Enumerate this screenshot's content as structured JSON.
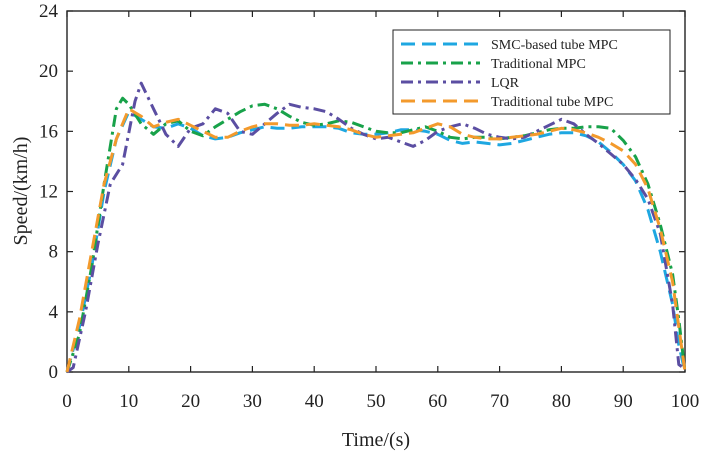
{
  "chart_data": {
    "type": "line",
    "xlabel": "Time/(s)",
    "ylabel": "Speed/(km/h)",
    "xlim": [
      0,
      100
    ],
    "ylim": [
      0,
      24
    ],
    "xticks": [
      0,
      10,
      20,
      30,
      40,
      50,
      60,
      70,
      80,
      90,
      100
    ],
    "yticks": [
      0,
      4,
      8,
      12,
      16,
      20,
      24
    ],
    "grid": false,
    "legend_position": "top-right",
    "series": [
      {
        "name": "SMC-based tube MPC",
        "color": "#1ea7e1",
        "dash": "dashed",
        "x": [
          0,
          2,
          4,
          6,
          8,
          10,
          12,
          14,
          16,
          18,
          20,
          22,
          24,
          26,
          28,
          30,
          32,
          34,
          36,
          38,
          40,
          42,
          44,
          46,
          48,
          50,
          52,
          54,
          56,
          58,
          60,
          62,
          64,
          66,
          68,
          70,
          72,
          74,
          76,
          78,
          80,
          82,
          84,
          86,
          88,
          90,
          92,
          94,
          96,
          98,
          99,
          100
        ],
        "y": [
          0,
          3,
          7,
          12,
          15.5,
          17.3,
          16.8,
          16.3,
          16.2,
          16.5,
          16.2,
          15.7,
          15.5,
          15.6,
          15.9,
          16.1,
          16.3,
          16.2,
          16.2,
          16.3,
          16.3,
          16.3,
          16.2,
          15.9,
          15.8,
          15.8,
          15.9,
          16.1,
          16.1,
          16.0,
          15.8,
          15.4,
          15.2,
          15.3,
          15.2,
          15.1,
          15.2,
          15.4,
          15.6,
          15.8,
          15.9,
          15.9,
          15.7,
          15.3,
          14.6,
          13.8,
          12.7,
          10.8,
          8.0,
          4.5,
          1.8,
          0
        ]
      },
      {
        "name": "Traditional MPC",
        "color": "#18a24a",
        "dash": "dashdot",
        "x": [
          0,
          2,
          4,
          6,
          8,
          9,
          10,
          12,
          14,
          16,
          18,
          20,
          22,
          24,
          26,
          28,
          30,
          32,
          34,
          36,
          38,
          40,
          42,
          44,
          46,
          48,
          50,
          52,
          54,
          56,
          58,
          60,
          62,
          64,
          66,
          68,
          70,
          72,
          74,
          76,
          78,
          80,
          82,
          84,
          86,
          88,
          90,
          92,
          94,
          96,
          98,
          99,
          100
        ],
        "y": [
          0,
          2.5,
          7,
          12.5,
          17.5,
          18.2,
          17.8,
          16.5,
          15.8,
          16.5,
          16.7,
          16.0,
          15.7,
          16.3,
          16.8,
          17.3,
          17.7,
          17.8,
          17.5,
          17.0,
          16.6,
          16.4,
          16.5,
          16.7,
          16.6,
          16.3,
          16.0,
          15.9,
          15.9,
          16.1,
          16.3,
          16.0,
          15.6,
          15.5,
          15.6,
          15.6,
          15.5,
          15.6,
          15.7,
          15.9,
          16.1,
          16.2,
          16.2,
          16.3,
          16.3,
          16.2,
          15.4,
          14.3,
          12.5,
          9.8,
          6.5,
          3.5,
          0
        ]
      },
      {
        "name": "LQR",
        "color": "#5b4ea2",
        "dash": "dashdot",
        "x": [
          0,
          1,
          3,
          5,
          7,
          9,
          11,
          12,
          14,
          16,
          18,
          20,
          22,
          24,
          26,
          28,
          30,
          32,
          34,
          36,
          38,
          40,
          42,
          44,
          46,
          48,
          50,
          52,
          54,
          56,
          58,
          60,
          62,
          64,
          66,
          68,
          70,
          72,
          74,
          76,
          78,
          80,
          82,
          84,
          86,
          88,
          90,
          92,
          94,
          96,
          98,
          99,
          100
        ],
        "y": [
          0,
          0.3,
          4,
          8.5,
          12.5,
          13.8,
          18.0,
          19.2,
          17.5,
          15.8,
          15.0,
          16.2,
          16.5,
          17.5,
          17.2,
          16.0,
          15.8,
          16.5,
          17.2,
          17.8,
          17.6,
          17.5,
          17.3,
          16.8,
          16.2,
          15.8,
          15.5,
          15.6,
          15.3,
          15.0,
          15.4,
          16.0,
          16.3,
          16.5,
          16.2,
          15.8,
          15.6,
          15.5,
          15.6,
          16.0,
          16.4,
          16.8,
          16.5,
          15.8,
          15.2,
          14.5,
          13.8,
          12.8,
          11.5,
          9.2,
          4.5,
          0.5,
          0.2
        ]
      },
      {
        "name": "Traditional tube MPC",
        "color": "#f39a2c",
        "dash": "dashed",
        "x": [
          0,
          2,
          4,
          6,
          8,
          9,
          10,
          12,
          14,
          16,
          18,
          20,
          22,
          24,
          26,
          28,
          30,
          32,
          34,
          36,
          38,
          40,
          42,
          44,
          46,
          48,
          50,
          52,
          54,
          56,
          58,
          60,
          62,
          64,
          66,
          68,
          70,
          72,
          74,
          76,
          78,
          80,
          82,
          84,
          86,
          88,
          90,
          92,
          94,
          96,
          98,
          99,
          100
        ],
        "y": [
          0,
          3.5,
          8,
          12.5,
          15.5,
          16.5,
          17.5,
          17.0,
          16.3,
          16.6,
          16.8,
          16.4,
          16.0,
          15.6,
          15.6,
          16.0,
          16.3,
          16.5,
          16.5,
          16.4,
          16.4,
          16.5,
          16.4,
          16.3,
          16.1,
          15.8,
          15.6,
          15.7,
          15.8,
          15.9,
          16.2,
          16.5,
          16.3,
          15.8,
          15.6,
          15.5,
          15.5,
          15.6,
          15.7,
          15.8,
          16.0,
          16.2,
          16.1,
          15.9,
          15.6,
          15.2,
          14.7,
          13.8,
          12.2,
          9.5,
          6.0,
          3.0,
          0
        ]
      }
    ]
  }
}
